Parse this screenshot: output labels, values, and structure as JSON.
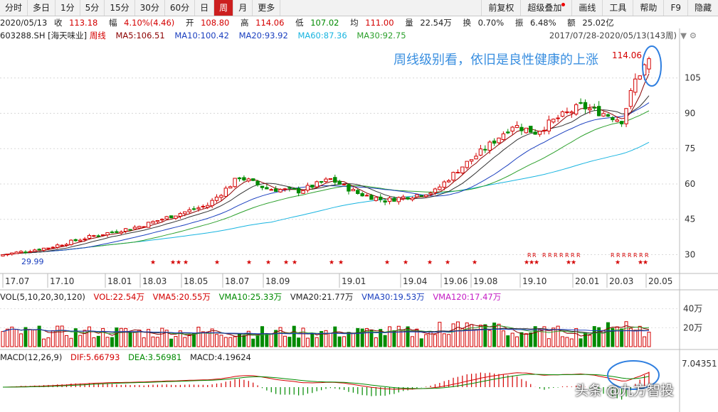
{
  "toolbar": {
    "periods": [
      "分时",
      "多日",
      "1分",
      "5分",
      "15分",
      "30分",
      "60分",
      "日",
      "周",
      "月",
      "更多"
    ],
    "active_period": "周",
    "right_items": [
      "前复权",
      "超级叠加",
      "画线",
      "工具",
      "帮助",
      "F9",
      "隐藏"
    ]
  },
  "quote": {
    "date": "2020/05/13",
    "close_label": "收",
    "close": "113.18",
    "change_label": "幅",
    "change": "4.10%(4.46)",
    "open_label": "开",
    "open": "108.80",
    "high_label": "高",
    "high": "114.06",
    "low_label": "低",
    "low": "107.02",
    "avg_label": "均",
    "avg": "111.00",
    "volume_label": "量",
    "volume": "22.54万",
    "turnover_label": "换",
    "turnover": "0.70%",
    "amplitude_label": "振",
    "amplitude": "6.48%",
    "amount_label": "额",
    "amount": "25.02亿"
  },
  "indicator_bar": {
    "code": "603288.SH",
    "name": "[海天味业]",
    "period": "周线",
    "ma5": "MA5:106.51",
    "ma10": "MA10:100.42",
    "ma20": "MA20:93.92",
    "ma60": "MA60:87.36",
    "ma30": "MA30:92.75",
    "range": "2017/07/28-2020/05/13(143周)"
  },
  "annotation": "周线级别看，依旧是良性健康的上涨",
  "price_labels": {
    "high_marker": "114.06",
    "low_marker": "29.99"
  },
  "y_axis": [
    "105",
    "90",
    "75",
    "60",
    "45",
    "30"
  ],
  "x_axis": [
    "17.07",
    "17.10",
    "18.01",
    "18.03",
    "18.05",
    "18.07",
    "18.09",
    "19.01",
    "19.04",
    "19.06",
    "19.08",
    "19.10",
    "20.01",
    "20.03",
    "20.05"
  ],
  "volume_panel": {
    "title": "VOL(5,10,20,30,120)",
    "vol": "VOL:22.54万",
    "vma5": "VMA5:20.55万",
    "vma10": "VMA10:25.33万",
    "vma20": "VMA20:21.77万",
    "vma30": "VMA30:19.53万",
    "vma120": "VMA120:17.47万",
    "y_axis": [
      "40万",
      "20万"
    ]
  },
  "macd_panel": {
    "title": "MACD(12,26,9)",
    "dif": "DIF:5.66793",
    "dea": "DEA:3.56981",
    "macd": "MACD:4.19624",
    "y_top": "7.04351"
  },
  "markers": {
    "star_glyph": "★",
    "r_glyph": "R"
  },
  "watermark": "头条 @九方智投",
  "colors": {
    "up": "#d40000",
    "down": "#008a00",
    "ma5": "#8b0000",
    "ma10": "#1a3fbf",
    "ma20": "#2ca02c",
    "ma60": "#17b4e0",
    "annotation": "#3a8fe0"
  }
}
